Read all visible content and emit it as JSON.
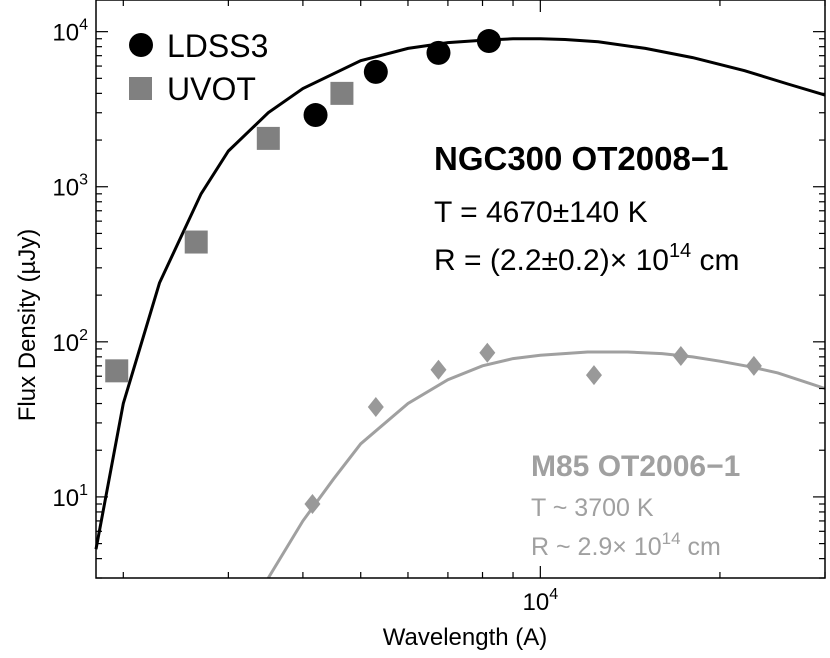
{
  "chart_data": {
    "type": "scatter",
    "xlabel": "Wavelength  (A)",
    "ylabel": "Flux Density  (µJy)",
    "xscale": "log",
    "yscale": "log",
    "xlim": [
      1800,
      30000
    ],
    "ylim": [
      3,
      16000
    ],
    "x_tick_labels": [
      {
        "value": 10000,
        "base": "10",
        "exp": "4"
      }
    ],
    "y_tick_labels": [
      {
        "value": 10,
        "base": "10",
        "exp": "1"
      },
      {
        "value": 100,
        "base": "10",
        "exp": "2"
      },
      {
        "value": 1000,
        "base": "10",
        "exp": "3"
      },
      {
        "value": 10000,
        "base": "10",
        "exp": "4"
      }
    ],
    "legend": {
      "placement": "top-left",
      "entries": [
        {
          "label": "LDSS3",
          "marker": "circle",
          "color": "#000000"
        },
        {
          "label": "UVOT",
          "marker": "square",
          "color": "#808080"
        }
      ]
    },
    "series": [
      {
        "name": "LDSS3",
        "color": "#000000",
        "marker": "circle",
        "points": [
          [
            4200,
            2900
          ],
          [
            5300,
            5500
          ],
          [
            6750,
            7300
          ],
          [
            8200,
            8700
          ]
        ]
      },
      {
        "name": "UVOT",
        "color": "#808080",
        "marker": "square",
        "points": [
          [
            1950,
            65
          ],
          [
            2650,
            440
          ],
          [
            3500,
            2050
          ],
          [
            4650,
            4000
          ]
        ]
      },
      {
        "color": "#999999",
        "marker": "diamond",
        "points": [
          [
            4150,
            9
          ],
          [
            5300,
            38
          ],
          [
            6750,
            66
          ],
          [
            8150,
            85
          ],
          [
            12300,
            61
          ],
          [
            17200,
            81
          ],
          [
            22800,
            70
          ]
        ]
      }
    ],
    "curves": [
      {
        "label": "NGC300 OT2008-1 blackbody",
        "color": "#000000",
        "points": [
          [
            1800,
            4.6
          ],
          [
            2000,
            40
          ],
          [
            2300,
            240
          ],
          [
            2700,
            900
          ],
          [
            3000,
            1700
          ],
          [
            3500,
            3000
          ],
          [
            4000,
            4300
          ],
          [
            5000,
            6500
          ],
          [
            6000,
            7800
          ],
          [
            7000,
            8500
          ],
          [
            8000,
            8800
          ],
          [
            9000,
            9000
          ],
          [
            10000,
            9000
          ],
          [
            11000,
            8900
          ],
          [
            12500,
            8600
          ],
          [
            15000,
            7800
          ],
          [
            18000,
            6800
          ],
          [
            22000,
            5600
          ],
          [
            26000,
            4600
          ],
          [
            30000,
            3900
          ]
        ]
      },
      {
        "label": "M85 OT2006-1 blackbody",
        "color": "#a0a0a0",
        "points": [
          [
            3500,
            3
          ],
          [
            4000,
            7
          ],
          [
            4500,
            13
          ],
          [
            5000,
            22
          ],
          [
            6000,
            40
          ],
          [
            7000,
            57
          ],
          [
            8000,
            70
          ],
          [
            9000,
            78
          ],
          [
            10000,
            82
          ],
          [
            12000,
            86
          ],
          [
            14000,
            86
          ],
          [
            16000,
            84
          ],
          [
            18000,
            80
          ],
          [
            20000,
            75
          ],
          [
            22500,
            69
          ],
          [
            25000,
            63
          ],
          [
            30000,
            50
          ]
        ]
      }
    ],
    "annotations": {
      "ngc": {
        "name": "NGC300 OT2008−1",
        "temp": "T = 4670±140 K",
        "radius_prefix": "R = (2.2±0.2)× 10",
        "radius_exp": "14",
        "radius_suffix": " cm"
      },
      "m85": {
        "name": "M85 OT2006−1",
        "temp": "T ~ 3700 K",
        "radius_prefix": "R ~ 2.9× 10",
        "radius_exp": "14",
        "radius_suffix": " cm"
      }
    }
  }
}
